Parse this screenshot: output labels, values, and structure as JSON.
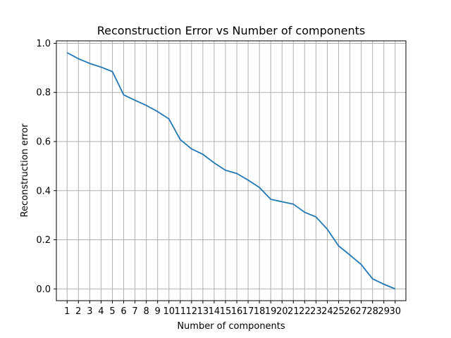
{
  "chart_data": {
    "type": "line",
    "title": "Reconstruction Error vs Number of components",
    "xlabel": "Number of components",
    "ylabel": "Reconstruction error",
    "x": [
      1,
      2,
      3,
      4,
      5,
      6,
      7,
      8,
      9,
      10,
      11,
      12,
      13,
      14,
      15,
      16,
      17,
      18,
      19,
      20,
      21,
      22,
      23,
      24,
      25,
      26,
      27,
      28,
      29,
      30
    ],
    "series": [
      {
        "values": [
          0.962,
          0.937,
          0.918,
          0.903,
          0.885,
          0.79,
          0.768,
          0.747,
          0.722,
          0.692,
          0.608,
          0.57,
          0.548,
          0.513,
          0.483,
          0.47,
          0.443,
          0.413,
          0.365,
          0.355,
          0.345,
          0.312,
          0.293,
          0.243,
          0.175,
          0.138,
          0.099,
          0.041,
          0.019,
          0.0
        ],
        "color": "#1f77b4"
      }
    ],
    "xlim": [
      0.05,
      30.95
    ],
    "ylim": [
      -0.048,
      1.01
    ],
    "yticks": [
      0.0,
      0.2,
      0.4,
      0.6,
      0.8,
      1.0
    ],
    "ytick_labels": [
      "0.0",
      "0.2",
      "0.4",
      "0.6",
      "0.8",
      "1.0"
    ],
    "grid": true,
    "grid_color": "#b0b0b0"
  }
}
